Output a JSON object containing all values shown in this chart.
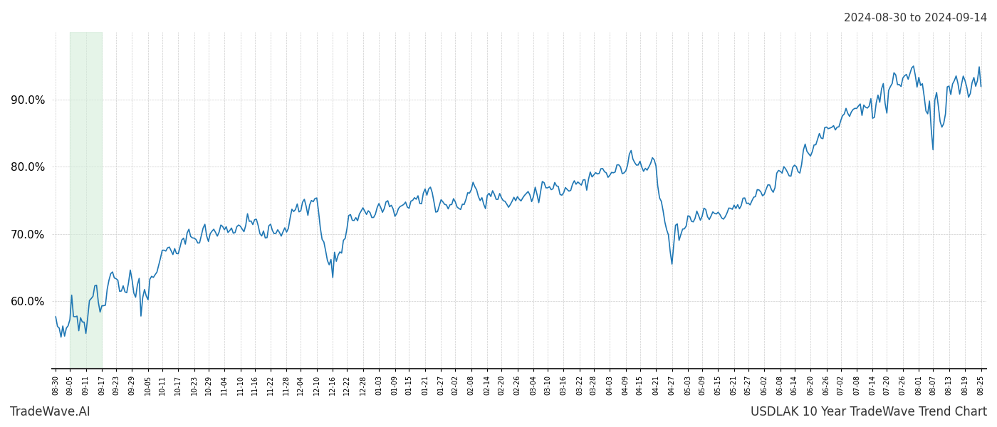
{
  "title_top_right": "2024-08-30 to 2024-09-14",
  "title_bottom_left": "TradeWave.AI",
  "title_bottom_right": "USDLAK 10 Year TradeWave Trend Chart",
  "ylim": [
    50,
    100
  ],
  "yticks": [
    60,
    70,
    80,
    90
  ],
  "line_color": "#1f77b4",
  "line_width": 1.2,
  "highlight_color": "#d4edda",
  "highlight_alpha": 0.6,
  "background_color": "#ffffff",
  "grid_color": "#cccccc",
  "x_labels": [
    "08-30",
    "09-05",
    "09-11",
    "09-17",
    "09-23",
    "09-29",
    "10-05",
    "10-11",
    "10-17",
    "10-23",
    "10-29",
    "11-04",
    "11-10",
    "11-16",
    "11-22",
    "11-28",
    "12-04",
    "12-10",
    "12-16",
    "12-22",
    "12-28",
    "01-03",
    "01-09",
    "01-15",
    "01-21",
    "01-27",
    "02-02",
    "02-08",
    "02-14",
    "02-20",
    "02-26",
    "03-04",
    "03-10",
    "03-16",
    "03-22",
    "03-28",
    "04-03",
    "04-09",
    "04-15",
    "04-21",
    "04-27",
    "05-03",
    "05-09",
    "05-15",
    "05-21",
    "05-27",
    "06-02",
    "06-08",
    "06-14",
    "06-20",
    "06-26",
    "07-02",
    "07-08",
    "07-14",
    "07-20",
    "07-26",
    "08-01",
    "08-07",
    "08-13",
    "08-19",
    "08-25"
  ],
  "highlight_start_label": "09-05",
  "highlight_end_label": "09-17",
  "n_points": 522,
  "noise_seed": 12
}
